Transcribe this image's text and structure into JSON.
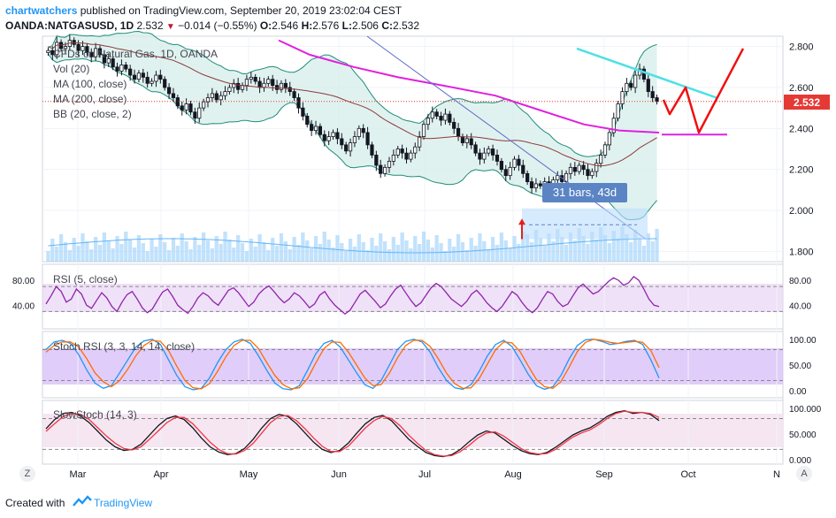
{
  "header": {
    "publisher": "chartwatchers",
    "published_text": "published on TradingView.com, September 20, 2019 23:02:04 CEST",
    "symbol": "OANDA:NATGASUSD, 1D",
    "last": "2.532",
    "change": "−0.014 (−0.55%)",
    "o_label": "O:",
    "o_val": "2.546",
    "h_label": "H:",
    "h_val": "2.576",
    "l_label": "L:",
    "l_val": "2.506",
    "c_label": "C:",
    "c_val": "2.532"
  },
  "legend": {
    "title": "CFDs on Natural Gas, 1D, OANDA",
    "items": [
      "Vol (20)",
      "MA (100, close)",
      "MA (200, close)",
      "BB (20, close, 2)"
    ]
  },
  "price_tag": "2.532",
  "measure_label": "31 bars, 43d",
  "rsi_label": "RSI (5, close)",
  "stoch_rsi_label": "Stoch RSI (3, 3, 14, 14, close)",
  "slowstoch_label": "SlowStoch (14, 3)",
  "chart_data": [
    {
      "type": "candlestick",
      "title": "CFDs on Natural Gas, 1D, OANDA",
      "series_name": "OANDA:NATGASUSD",
      "ylim": [
        1.75,
        2.85
      ],
      "y_ticks": [
        2.8,
        2.6,
        2.4,
        2.2,
        2.0,
        1.8
      ],
      "y_tick_labels": [
        "2.800",
        "2.600",
        "2.400",
        "2.200",
        "2.000",
        "1.800"
      ],
      "x_ticks": [
        "Mar",
        "Apr",
        "May",
        "Jun",
        "Jul",
        "Aug",
        "Sep",
        "Oct",
        "N"
      ],
      "close_values": [
        2.78,
        2.76,
        2.82,
        2.79,
        2.8,
        2.83,
        2.81,
        2.78,
        2.8,
        2.77,
        2.75,
        2.79,
        2.76,
        2.72,
        2.74,
        2.7,
        2.68,
        2.71,
        2.69,
        2.66,
        2.64,
        2.67,
        2.65,
        2.62,
        2.63,
        2.66,
        2.64,
        2.6,
        2.57,
        2.55,
        2.51,
        2.49,
        2.52,
        2.48,
        2.45,
        2.5,
        2.53,
        2.55,
        2.57,
        2.54,
        2.56,
        2.58,
        2.6,
        2.62,
        2.59,
        2.61,
        2.64,
        2.65,
        2.63,
        2.6,
        2.62,
        2.64,
        2.61,
        2.59,
        2.62,
        2.6,
        2.58,
        2.55,
        2.5,
        2.46,
        2.42,
        2.39,
        2.41,
        2.37,
        2.34,
        2.36,
        2.38,
        2.35,
        2.32,
        2.29,
        2.33,
        2.36,
        2.4,
        2.38,
        2.32,
        2.27,
        2.22,
        2.18,
        2.21,
        2.24,
        2.27,
        2.3,
        2.28,
        2.25,
        2.28,
        2.31,
        2.36,
        2.42,
        2.45,
        2.48,
        2.46,
        2.44,
        2.47,
        2.43,
        2.4,
        2.36,
        2.33,
        2.35,
        2.32,
        2.28,
        2.25,
        2.28,
        2.3,
        2.27,
        2.24,
        2.2,
        2.17,
        2.21,
        2.25,
        2.22,
        2.18,
        2.14,
        2.11,
        2.13,
        2.12,
        2.14,
        2.12,
        2.15,
        2.17,
        2.14,
        2.18,
        2.21,
        2.19,
        2.22,
        2.2,
        2.17,
        2.19,
        2.23,
        2.27,
        2.32,
        2.38,
        2.45,
        2.52,
        2.58,
        2.62,
        2.6,
        2.66,
        2.69,
        2.64,
        2.58,
        2.55,
        2.532
      ],
      "overlays": [
        {
          "name": "MA (100, close)",
          "color": "#8b3a3a"
        },
        {
          "name": "MA (200, close)",
          "color": "#e020e0"
        },
        {
          "name": "BB (20, close, 2)",
          "color": "#2aa38f"
        },
        {
          "name": "Vol (20)",
          "color": "#90caf9"
        }
      ],
      "annotations": [
        {
          "text": "31 bars, 43d",
          "type": "date-price range"
        },
        {
          "text": "projection",
          "type": "hand-drawn red zigzag",
          "points": [
            2.47,
            2.6,
            2.38,
            2.79
          ]
        },
        {
          "text": "cyan trendline",
          "type": "trendline",
          "from": 2.79,
          "to": 2.55
        },
        {
          "text": "support",
          "type": "horizontal",
          "value": 2.37
        },
        {
          "text": "last price",
          "type": "horizontal",
          "value": 2.532
        }
      ]
    },
    {
      "type": "line",
      "title": "RSI (5, close)",
      "ylim": [
        5,
        100
      ],
      "y_ticks": [
        80.0,
        40.0
      ],
      "y_tick_labels": [
        "80.00",
        "40.00"
      ],
      "band": [
        30,
        70
      ],
      "values": [
        42,
        55,
        70,
        62,
        45,
        50,
        66,
        58,
        40,
        35,
        48,
        60,
        52,
        38,
        30,
        45,
        57,
        62,
        50,
        36,
        28,
        34,
        48,
        61,
        66,
        54,
        40,
        33,
        27,
        38,
        52,
        60,
        55,
        46,
        40,
        52,
        64,
        68,
        60,
        49,
        38,
        45,
        58,
        66,
        71,
        62,
        52,
        44,
        50,
        60,
        55,
        46,
        36,
        42,
        56,
        62,
        50,
        40,
        33,
        26,
        32,
        45,
        58,
        64,
        55,
        46,
        36,
        42,
        55,
        66,
        72,
        60,
        48,
        38,
        44,
        56,
        68,
        75,
        70,
        60,
        50,
        44,
        38,
        46,
        58,
        64,
        55,
        44,
        36,
        30,
        38,
        50,
        62,
        56,
        44,
        34,
        28,
        36,
        50,
        62,
        58,
        46,
        38,
        42,
        55,
        68,
        74,
        66,
        58,
        62,
        70,
        78,
        84,
        80,
        72,
        76,
        86,
        80,
        66,
        50,
        40,
        38
      ]
    },
    {
      "type": "line",
      "title": "Stoch RSI (3, 3, 14, 14, close)",
      "ylim": [
        -10,
        110
      ],
      "y_ticks": [
        100.0,
        50.0,
        0.0
      ],
      "y_tick_labels": [
        "100.00",
        "50.00",
        "0.00"
      ],
      "band": [
        20,
        80
      ],
      "series": [
        {
          "name": "K",
          "color": "#2196f3",
          "values": [
            80,
            95,
            98,
            92,
            70,
            40,
            15,
            5,
            10,
            35,
            60,
            85,
            97,
            100,
            90,
            60,
            30,
            8,
            2,
            5,
            25,
            55,
            80,
            95,
            100,
            92,
            68,
            40,
            15,
            4,
            2,
            10,
            40,
            72,
            92,
            98,
            85,
            60,
            35,
            12,
            5,
            20,
            50,
            80,
            96,
            100,
            95,
            75,
            45,
            20,
            6,
            3,
            12,
            38,
            68,
            90,
            98,
            86,
            60,
            32,
            10,
            3,
            8,
            30,
            62,
            88,
            99,
            100,
            96,
            90,
            92,
            96,
            98,
            90,
            60,
            25
          ]
        },
        {
          "name": "D",
          "color": "#ff6d00",
          "values": [
            75,
            88,
            95,
            95,
            85,
            62,
            35,
            18,
            8,
            20,
            42,
            68,
            88,
            98,
            96,
            78,
            48,
            20,
            6,
            4,
            14,
            38,
            66,
            88,
            98,
            98,
            82,
            55,
            30,
            12,
            4,
            6,
            24,
            54,
            82,
            95,
            94,
            75,
            50,
            25,
            10,
            12,
            34,
            64,
            88,
            98,
            98,
            86,
            62,
            34,
            14,
            5,
            6,
            24,
            52,
            80,
            95,
            93,
            76,
            48,
            22,
            8,
            5,
            18,
            46,
            76,
            94,
            100,
            98,
            94,
            92,
            94,
            96,
            94,
            78,
            45
          ]
        }
      ]
    },
    {
      "type": "line",
      "title": "SlowStoch (14, 3)",
      "ylim": [
        -5,
        110
      ],
      "y_ticks": [
        100.0,
        50.0,
        0.0
      ],
      "y_tick_labels": [
        "100.000",
        "50.000",
        "0.000"
      ],
      "band": [
        20,
        80
      ],
      "series": [
        {
          "name": "K",
          "color": "#131722",
          "values": [
            60,
            78,
            90,
            92,
            85,
            72,
            55,
            38,
            25,
            18,
            20,
            30,
            48,
            66,
            80,
            85,
            78,
            62,
            42,
            25,
            15,
            10,
            12,
            22,
            40,
            62,
            80,
            88,
            84,
            70,
            52,
            34,
            20,
            14,
            18,
            32,
            52,
            70,
            82,
            86,
            76,
            58,
            40,
            26,
            14,
            8,
            6,
            10,
            20,
            35,
            48,
            56,
            52,
            40,
            28,
            18,
            12,
            10,
            14,
            24,
            36,
            48,
            56,
            62,
            72,
            84,
            92,
            95,
            90,
            92,
            88,
            76
          ]
        },
        {
          "name": "D",
          "color": "#f23645",
          "values": [
            55,
            70,
            84,
            90,
            88,
            78,
            62,
            46,
            32,
            22,
            19,
            25,
            40,
            56,
            72,
            82,
            82,
            70,
            52,
            34,
            20,
            12,
            11,
            18,
            32,
            52,
            72,
            84,
            86,
            76,
            60,
            42,
            26,
            16,
            16,
            26,
            44,
            62,
            76,
            84,
            80,
            66,
            48,
            32,
            18,
            10,
            7,
            8,
            16,
            28,
            42,
            52,
            54,
            46,
            34,
            22,
            14,
            11,
            12,
            20,
            32,
            44,
            52,
            58,
            68,
            80,
            90,
            94,
            92,
            92,
            90,
            82
          ]
        }
      ]
    }
  ],
  "footer": {
    "made_with": "Created with",
    "brand": "TradingView",
    "z_button": "Z",
    "a_button": "A"
  }
}
